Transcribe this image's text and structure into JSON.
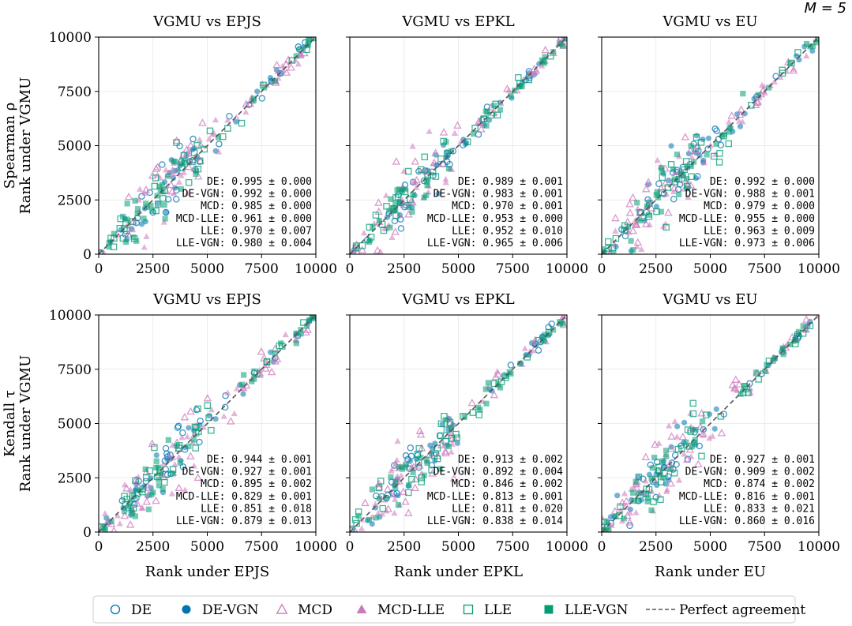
{
  "figure_label": "M = 5",
  "colors": {
    "DE": "#0173b2",
    "DE-VGN": "#0173b2",
    "MCD": "#cc78bc",
    "MCD-LLE": "#cc78bc",
    "LLE": "#029e73",
    "LLE-VGN": "#029e73",
    "perfect": "#555555"
  },
  "legend": [
    {
      "label": "DE",
      "marker": "circle-open",
      "color_key": "DE"
    },
    {
      "label": "DE-VGN",
      "marker": "circle-filled",
      "color_key": "DE-VGN"
    },
    {
      "label": "MCD",
      "marker": "triangle-open",
      "color_key": "MCD"
    },
    {
      "label": "MCD-LLE",
      "marker": "triangle-filled",
      "color_key": "MCD-LLE"
    },
    {
      "label": "LLE",
      "marker": "square-open",
      "color_key": "LLE"
    },
    {
      "label": "LLE-VGN",
      "marker": "square-filled",
      "color_key": "LLE-VGN"
    },
    {
      "label": "Perfect agreement",
      "marker": "dashed-line",
      "color_key": "perfect"
    }
  ],
  "chart_data": [
    {
      "type": "scatter",
      "title": "VGMU vs EPJS",
      "xlabel": "",
      "ylabel": "Spearman ρ\nRank under VGMU",
      "xlim": [
        0,
        10000
      ],
      "ylim": [
        0,
        10000
      ],
      "xticks": [
        "0",
        "2500",
        "5000",
        "7500",
        "10000"
      ],
      "yticks": [
        "0",
        "2500",
        "5000",
        "7500",
        "10000"
      ],
      "reference_line": "y = x",
      "stats": [
        {
          "method": "DE",
          "value": "0.995",
          "err": "0.000"
        },
        {
          "method": "DE-VGN",
          "value": "0.992",
          "err": "0.000"
        },
        {
          "method": "MCD",
          "value": "0.985",
          "err": "0.000"
        },
        {
          "method": "MCD-LLE",
          "value": "0.961",
          "err": "0.000"
        },
        {
          "method": "LLE",
          "value": "0.970",
          "err": "0.007"
        },
        {
          "method": "LLE-VGN",
          "value": "0.980",
          "err": "0.004"
        }
      ]
    },
    {
      "type": "scatter",
      "title": "VGMU vs EPKL",
      "xlabel": "",
      "ylabel": "",
      "xlim": [
        0,
        10000
      ],
      "ylim": [
        0,
        10000
      ],
      "xticks": [
        "0",
        "2500",
        "5000",
        "7500",
        "10000"
      ],
      "yticks": [],
      "reference_line": "y = x",
      "stats": [
        {
          "method": "DE",
          "value": "0.989",
          "err": "0.001"
        },
        {
          "method": "DE-VGN",
          "value": "0.983",
          "err": "0.001"
        },
        {
          "method": "MCD",
          "value": "0.970",
          "err": "0.001"
        },
        {
          "method": "MCD-LLE",
          "value": "0.953",
          "err": "0.000"
        },
        {
          "method": "LLE",
          "value": "0.952",
          "err": "0.010"
        },
        {
          "method": "LLE-VGN",
          "value": "0.965",
          "err": "0.006"
        }
      ]
    },
    {
      "type": "scatter",
      "title": "VGMU vs EU",
      "xlabel": "",
      "ylabel": "",
      "xlim": [
        0,
        10000
      ],
      "ylim": [
        0,
        10000
      ],
      "xticks": [
        "0",
        "2500",
        "5000",
        "7500",
        "10000"
      ],
      "yticks": [],
      "reference_line": "y = x",
      "stats": [
        {
          "method": "DE",
          "value": "0.992",
          "err": "0.000"
        },
        {
          "method": "DE-VGN",
          "value": "0.988",
          "err": "0.001"
        },
        {
          "method": "MCD",
          "value": "0.979",
          "err": "0.000"
        },
        {
          "method": "MCD-LLE",
          "value": "0.955",
          "err": "0.000"
        },
        {
          "method": "LLE",
          "value": "0.963",
          "err": "0.009"
        },
        {
          "method": "LLE-VGN",
          "value": "0.973",
          "err": "0.006"
        }
      ]
    },
    {
      "type": "scatter",
      "title": "VGMU vs EPJS",
      "xlabel": "Rank under EPJS",
      "ylabel": "Kendall τ\nRank under VGMU",
      "xlim": [
        0,
        10000
      ],
      "ylim": [
        0,
        10000
      ],
      "xticks": [
        "0",
        "2500",
        "5000",
        "7500",
        "10000"
      ],
      "yticks": [
        "0",
        "2500",
        "5000",
        "7500",
        "10000"
      ],
      "reference_line": "y = x",
      "stats": [
        {
          "method": "DE",
          "value": "0.944",
          "err": "0.001"
        },
        {
          "method": "DE-VGN",
          "value": "0.927",
          "err": "0.001"
        },
        {
          "method": "MCD",
          "value": "0.895",
          "err": "0.002"
        },
        {
          "method": "MCD-LLE",
          "value": "0.829",
          "err": "0.001"
        },
        {
          "method": "LLE",
          "value": "0.851",
          "err": "0.018"
        },
        {
          "method": "LLE-VGN",
          "value": "0.879",
          "err": "0.013"
        }
      ]
    },
    {
      "type": "scatter",
      "title": "VGMU vs EPKL",
      "xlabel": "Rank under EPKL",
      "ylabel": "",
      "xlim": [
        0,
        10000
      ],
      "ylim": [
        0,
        10000
      ],
      "xticks": [
        "0",
        "2500",
        "5000",
        "7500",
        "10000"
      ],
      "yticks": [],
      "reference_line": "y = x",
      "stats": [
        {
          "method": "DE",
          "value": "0.913",
          "err": "0.002"
        },
        {
          "method": "DE-VGN",
          "value": "0.892",
          "err": "0.004"
        },
        {
          "method": "MCD",
          "value": "0.846",
          "err": "0.002"
        },
        {
          "method": "MCD-LLE",
          "value": "0.813",
          "err": "0.001"
        },
        {
          "method": "LLE",
          "value": "0.811",
          "err": "0.020"
        },
        {
          "method": "LLE-VGN",
          "value": "0.838",
          "err": "0.014"
        }
      ]
    },
    {
      "type": "scatter",
      "title": "VGMU vs EU",
      "xlabel": "Rank under EU",
      "ylabel": "",
      "xlim": [
        0,
        10000
      ],
      "ylim": [
        0,
        10000
      ],
      "xticks": [
        "0",
        "2500",
        "5000",
        "7500",
        "10000"
      ],
      "yticks": [],
      "reference_line": "y = x",
      "stats": [
        {
          "method": "DE",
          "value": "0.927",
          "err": "0.001"
        },
        {
          "method": "DE-VGN",
          "value": "0.909",
          "err": "0.002"
        },
        {
          "method": "MCD",
          "value": "0.874",
          "err": "0.002"
        },
        {
          "method": "MCD-LLE",
          "value": "0.816",
          "err": "0.001"
        },
        {
          "method": "LLE",
          "value": "0.833",
          "err": "0.021"
        },
        {
          "method": "LLE-VGN",
          "value": "0.860",
          "err": "0.016"
        }
      ]
    }
  ]
}
